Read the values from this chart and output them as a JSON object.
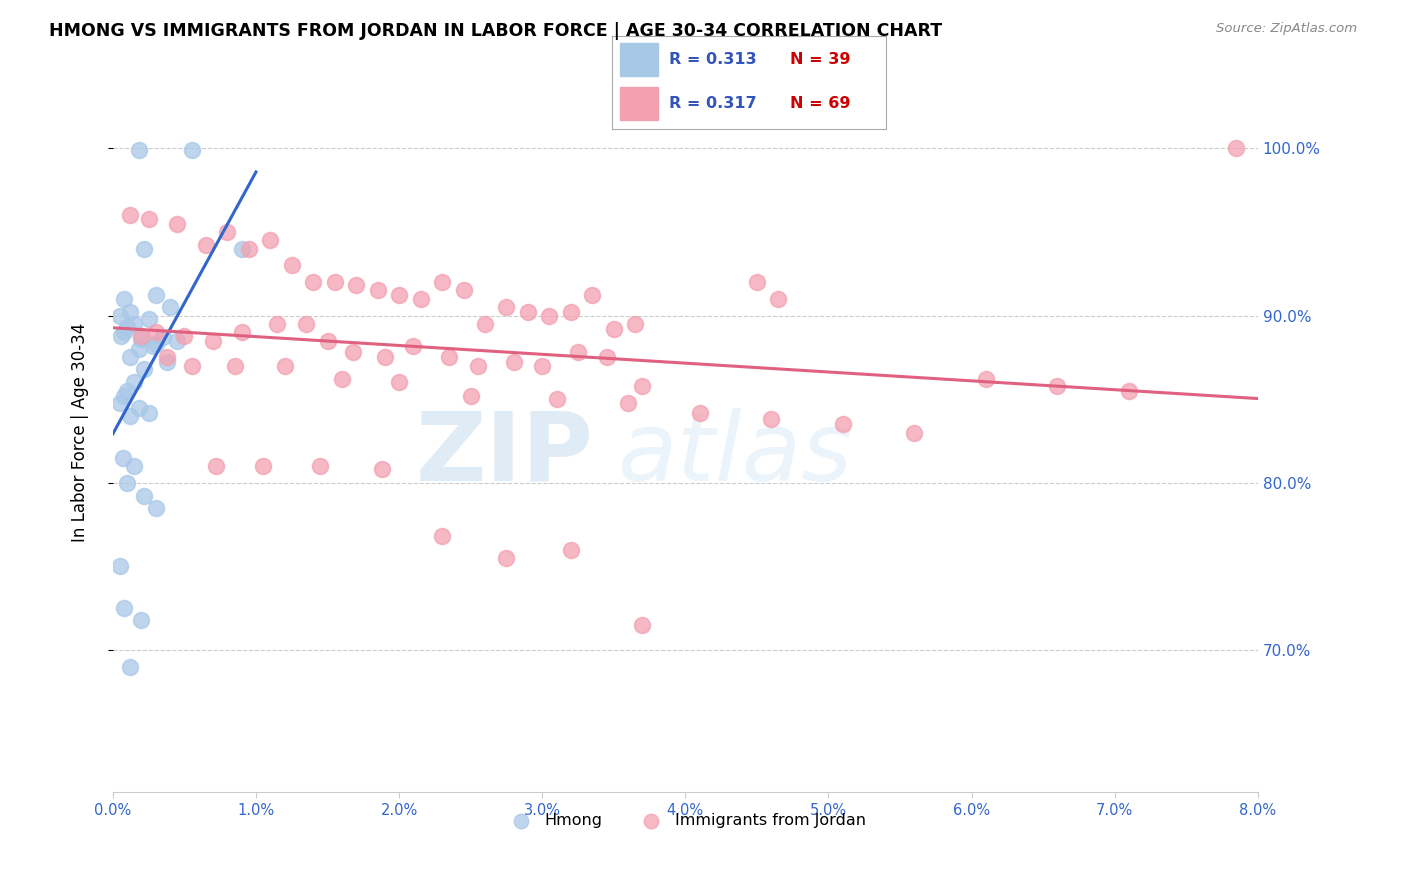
{
  "title": "HMONG VS IMMIGRANTS FROM JORDAN IN LABOR FORCE | AGE 30-34 CORRELATION CHART",
  "source": "Source: ZipAtlas.com",
  "ylabel": "In Labor Force | Age 30-34",
  "hmong_color": "#a8c8e8",
  "jordan_color": "#f4a0b0",
  "hmong_line_color": "#3366cc",
  "jordan_line_color": "#e06080",
  "hmong_R": 0.313,
  "hmong_N": 39,
  "jordan_R": 0.317,
  "jordan_N": 69,
  "legend_R_color": "#3355bb",
  "legend_N_color": "#cc0000",
  "hmong_x": [
    0.18,
    0.55,
    0.22,
    0.9,
    0.08,
    0.3,
    0.4,
    0.12,
    0.05,
    0.25,
    0.15,
    0.1,
    0.08,
    0.06,
    0.35,
    0.2,
    0.45,
    0.3,
    0.28,
    0.18,
    0.12,
    0.38,
    0.22,
    0.15,
    0.1,
    0.08,
    0.05,
    0.18,
    0.25,
    0.12,
    0.07,
    0.15,
    0.1,
    0.22,
    0.3,
    0.05,
    0.08,
    0.12,
    0.2
  ],
  "hmong_y": [
    0.999,
    0.999,
    0.94,
    0.94,
    0.91,
    0.912,
    0.905,
    0.902,
    0.9,
    0.898,
    0.895,
    0.893,
    0.89,
    0.888,
    0.887,
    0.886,
    0.885,
    0.883,
    0.882,
    0.88,
    0.875,
    0.872,
    0.868,
    0.86,
    0.855,
    0.852,
    0.848,
    0.845,
    0.842,
    0.84,
    0.815,
    0.81,
    0.8,
    0.792,
    0.785,
    0.75,
    0.725,
    0.69,
    0.718
  ],
  "jordan_x": [
    7.85,
    0.12,
    0.25,
    0.45,
    0.65,
    0.8,
    0.95,
    1.1,
    1.25,
    1.4,
    1.55,
    1.7,
    1.85,
    2.0,
    2.15,
    2.3,
    2.45,
    2.6,
    2.75,
    2.9,
    3.05,
    3.2,
    3.35,
    3.5,
    3.65,
    4.5,
    4.65,
    0.3,
    0.5,
    0.7,
    0.9,
    1.15,
    1.35,
    1.5,
    1.68,
    1.9,
    2.1,
    2.35,
    2.55,
    2.8,
    3.0,
    3.25,
    3.45,
    3.7,
    0.2,
    0.55,
    0.85,
    1.2,
    1.6,
    2.0,
    2.5,
    3.1,
    3.6,
    4.1,
    4.6,
    5.1,
    5.6,
    6.1,
    6.6,
    7.1,
    0.38,
    0.72,
    1.05,
    1.45,
    1.88,
    2.3,
    2.75,
    3.2,
    3.7
  ],
  "jordan_y": [
    1.0,
    0.96,
    0.958,
    0.955,
    0.942,
    0.95,
    0.94,
    0.945,
    0.93,
    0.92,
    0.92,
    0.918,
    0.915,
    0.912,
    0.91,
    0.92,
    0.915,
    0.895,
    0.905,
    0.902,
    0.9,
    0.902,
    0.912,
    0.892,
    0.895,
    0.92,
    0.91,
    0.89,
    0.888,
    0.885,
    0.89,
    0.895,
    0.895,
    0.885,
    0.878,
    0.875,
    0.882,
    0.875,
    0.87,
    0.872,
    0.87,
    0.878,
    0.875,
    0.858,
    0.888,
    0.87,
    0.87,
    0.87,
    0.862,
    0.86,
    0.852,
    0.85,
    0.848,
    0.842,
    0.838,
    0.835,
    0.83,
    0.862,
    0.858,
    0.855,
    0.875,
    0.81,
    0.81,
    0.81,
    0.808,
    0.768,
    0.755,
    0.76,
    0.715
  ],
  "xlim": [
    0,
    8.0
  ],
  "ylim": [
    0.615,
    1.045
  ],
  "ytick_vals": [
    0.7,
    0.8,
    0.9,
    1.0
  ],
  "ytick_labels": [
    "70.0%",
    "80.0%",
    "90.0%",
    "100.0%"
  ],
  "xtick_vals": [
    0,
    1,
    2,
    3,
    4,
    5,
    6,
    7,
    8
  ],
  "xtick_labels": [
    "0.0%",
    "1.0%",
    "2.0%",
    "3.0%",
    "4.0%",
    "5.0%",
    "6.0%",
    "7.0%",
    "8.0%"
  ]
}
